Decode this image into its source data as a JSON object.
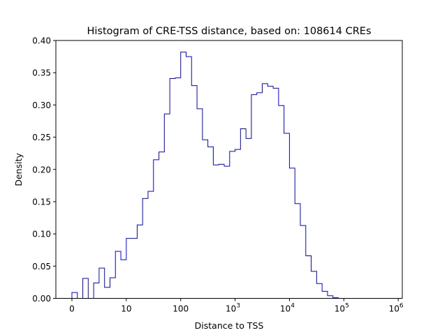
{
  "chart_data": {
    "type": "histogram",
    "title": "Histogram of CRE-TSS distance, based on: 108614 CREs",
    "xlabel": "Distance to TSS",
    "ylabel": "Density",
    "xscale": "symlog",
    "ylim": [
      0,
      0.4
    ],
    "y_ticks": [
      "0.00",
      "0.05",
      "0.10",
      "0.15",
      "0.20",
      "0.25",
      "0.30",
      "0.35",
      "0.40"
    ],
    "x_ticks": [
      {
        "base": "0",
        "exp": ""
      },
      {
        "base": "10",
        "exp": ""
      },
      {
        "base": "100",
        "exp": ""
      },
      {
        "base": "10",
        "exp": "3"
      },
      {
        "base": "10",
        "exp": "4"
      },
      {
        "base": "10",
        "exp": "5"
      },
      {
        "base": "10",
        "exp": "6"
      }
    ],
    "x_tick_values": [
      0,
      1,
      2,
      3,
      4,
      5,
      6
    ],
    "bin_edges_log10": [
      0,
      0.1,
      0.2,
      0.3,
      0.4,
      0.5,
      0.6,
      0.7,
      0.8,
      0.9,
      1.0,
      1.1,
      1.2,
      1.3,
      1.4,
      1.5,
      1.6,
      1.7,
      1.8,
      1.9,
      2.0,
      2.1,
      2.2,
      2.3,
      2.4,
      2.5,
      2.6,
      2.7,
      2.8,
      2.9,
      3.0,
      3.1,
      3.2,
      3.3,
      3.4,
      3.5,
      3.6,
      3.7,
      3.8,
      3.9,
      4.0,
      4.1,
      4.2,
      4.3,
      4.4,
      4.5,
      4.6,
      4.7,
      4.8,
      4.9,
      5.0,
      5.1,
      5.2,
      5.3,
      5.4,
      5.5,
      5.6,
      5.7,
      5.8
    ],
    "values": [
      0.009,
      0.0,
      0.031,
      0.0,
      0.024,
      0.047,
      0.017,
      0.032,
      0.073,
      0.06,
      0.093,
      0.093,
      0.114,
      0.155,
      0.166,
      0.215,
      0.227,
      0.286,
      0.341,
      0.342,
      0.382,
      0.375,
      0.33,
      0.294,
      0.246,
      0.235,
      0.207,
      0.208,
      0.205,
      0.228,
      0.231,
      0.263,
      0.248,
      0.316,
      0.319,
      0.333,
      0.329,
      0.326,
      0.299,
      0.256,
      0.202,
      0.147,
      0.113,
      0.066,
      0.042,
      0.023,
      0.011,
      0.004,
      0.001,
      0.0,
      0.0,
      0.0,
      0.0,
      0.0,
      0.0,
      0.0,
      0.0,
      0.0
    ],
    "color": "#0000ff",
    "grid": false,
    "legend": "none"
  }
}
